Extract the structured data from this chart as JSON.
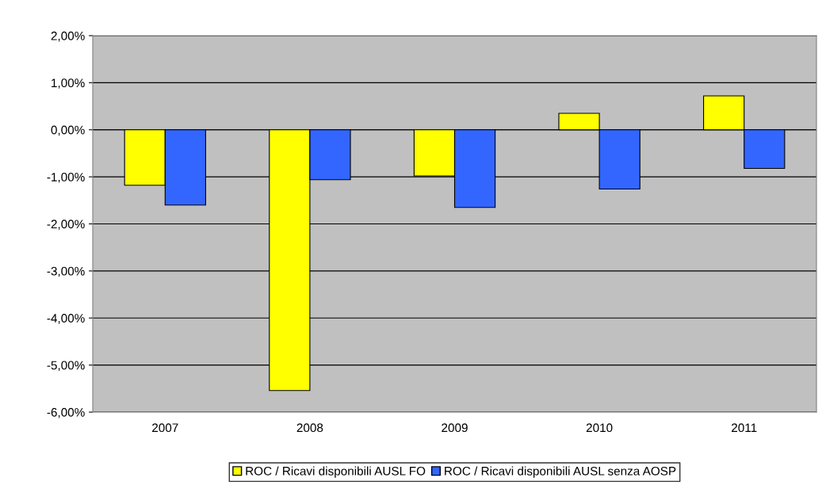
{
  "chart_data": {
    "type": "bar",
    "categories": [
      "2007",
      "2008",
      "2009",
      "2010",
      "2011"
    ],
    "series": [
      {
        "name": "ROC / Ricavi disponibili AUSL FO",
        "color": "#ffff00",
        "values": [
          -1.18,
          -5.54,
          -0.98,
          0.35,
          0.72
        ]
      },
      {
        "name": "ROC / Ricavi disponibili AUSL senza AOSP",
        "color": "#3366ff",
        "values": [
          -1.6,
          -1.06,
          -1.65,
          -1.26,
          -0.82
        ]
      }
    ],
    "ylim": [
      -6,
      2
    ],
    "yticks": [
      {
        "value": -6,
        "label": "-6,00%"
      },
      {
        "value": -5,
        "label": "-5,00%"
      },
      {
        "value": -4,
        "label": "-4,00%"
      },
      {
        "value": -3,
        "label": "-3,00%"
      },
      {
        "value": -2,
        "label": "-2,00%"
      },
      {
        "value": -1,
        "label": "-1,00%"
      },
      {
        "value": 0,
        "label": "0,00%"
      },
      {
        "value": 1,
        "label": "1,00%"
      },
      {
        "value": 2,
        "label": "2,00%"
      }
    ],
    "grid": "y",
    "legend": "bottom"
  }
}
